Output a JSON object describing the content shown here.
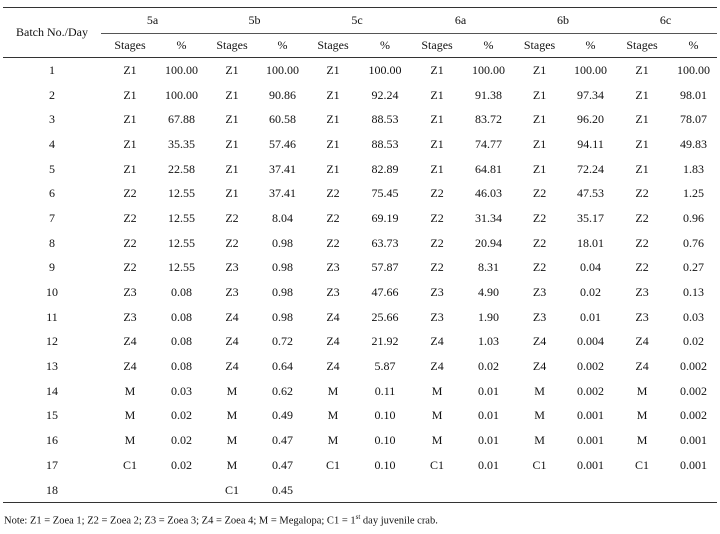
{
  "table": {
    "row_header": "Batch No./Day",
    "groups": [
      "5a",
      "5b",
      "5c",
      "6a",
      "6b",
      "6c"
    ],
    "sub_headers": {
      "stages": "Stages",
      "percent": "%"
    },
    "rows": [
      [
        "1",
        "Z1",
        "100.00",
        "Z1",
        "100.00",
        "Z1",
        "100.00",
        "Z1",
        "100.00",
        "Z1",
        "100.00",
        "Z1",
        "100.00"
      ],
      [
        "2",
        "Z1",
        "100.00",
        "Z1",
        "90.86",
        "Z1",
        "92.24",
        "Z1",
        "91.38",
        "Z1",
        "97.34",
        "Z1",
        "98.01"
      ],
      [
        "3",
        "Z1",
        "67.88",
        "Z1",
        "60.58",
        "Z1",
        "88.53",
        "Z1",
        "83.72",
        "Z1",
        "96.20",
        "Z1",
        "78.07"
      ],
      [
        "4",
        "Z1",
        "35.35",
        "Z1",
        "57.46",
        "Z1",
        "88.53",
        "Z1",
        "74.77",
        "Z1",
        "94.11",
        "Z1",
        "49.83"
      ],
      [
        "5",
        "Z1",
        "22.58",
        "Z1",
        "37.41",
        "Z1",
        "82.89",
        "Z1",
        "64.81",
        "Z1",
        "72.24",
        "Z1",
        "1.83"
      ],
      [
        "6",
        "Z2",
        "12.55",
        "Z1",
        "37.41",
        "Z2",
        "75.45",
        "Z2",
        "46.03",
        "Z2",
        "47.53",
        "Z2",
        "1.25"
      ],
      [
        "7",
        "Z2",
        "12.55",
        "Z2",
        "8.04",
        "Z2",
        "69.19",
        "Z2",
        "31.34",
        "Z2",
        "35.17",
        "Z2",
        "0.96"
      ],
      [
        "8",
        "Z2",
        "12.55",
        "Z2",
        "0.98",
        "Z2",
        "63.73",
        "Z2",
        "20.94",
        "Z2",
        "18.01",
        "Z2",
        "0.76"
      ],
      [
        "9",
        "Z2",
        "12.55",
        "Z3",
        "0.98",
        "Z3",
        "57.87",
        "Z2",
        "8.31",
        "Z2",
        "0.04",
        "Z2",
        "0.27"
      ],
      [
        "10",
        "Z3",
        "0.08",
        "Z3",
        "0.98",
        "Z3",
        "47.66",
        "Z3",
        "4.90",
        "Z3",
        "0.02",
        "Z3",
        "0.13"
      ],
      [
        "11",
        "Z3",
        "0.08",
        "Z4",
        "0.98",
        "Z4",
        "25.66",
        "Z3",
        "1.90",
        "Z3",
        "0.01",
        "Z3",
        "0.03"
      ],
      [
        "12",
        "Z4",
        "0.08",
        "Z4",
        "0.72",
        "Z4",
        "21.92",
        "Z4",
        "1.03",
        "Z4",
        "0.004",
        "Z4",
        "0.02"
      ],
      [
        "13",
        "Z4",
        "0.08",
        "Z4",
        "0.64",
        "Z4",
        "5.87",
        "Z4",
        "0.02",
        "Z4",
        "0.002",
        "Z4",
        "0.002"
      ],
      [
        "14",
        "M",
        "0.03",
        "M",
        "0.62",
        "M",
        "0.11",
        "M",
        "0.01",
        "M",
        "0.002",
        "M",
        "0.002"
      ],
      [
        "15",
        "M",
        "0.02",
        "M",
        "0.49",
        "M",
        "0.10",
        "M",
        "0.01",
        "M",
        "0.001",
        "M",
        "0.002"
      ],
      [
        "16",
        "M",
        "0.02",
        "M",
        "0.47",
        "M",
        "0.10",
        "M",
        "0.01",
        "M",
        "0.001",
        "M",
        "0.001"
      ],
      [
        "17",
        "C1",
        "0.02",
        "M",
        "0.47",
        "C1",
        "0.10",
        "C1",
        "0.01",
        "C1",
        "0.001",
        "C1",
        "0.001"
      ],
      [
        "18",
        "",
        "",
        "C1",
        "0.45",
        "",
        "",
        "",
        "",
        "",
        "",
        "",
        ""
      ]
    ]
  },
  "note": {
    "prefix": "Note: Z1 = Zoea 1; Z2 = Zoea 2; Z3 = Zoea 3; Z4 = Zoea 4; M = Megalopa; C1 = 1",
    "sup": "st",
    "suffix": " day juvenile crab."
  }
}
